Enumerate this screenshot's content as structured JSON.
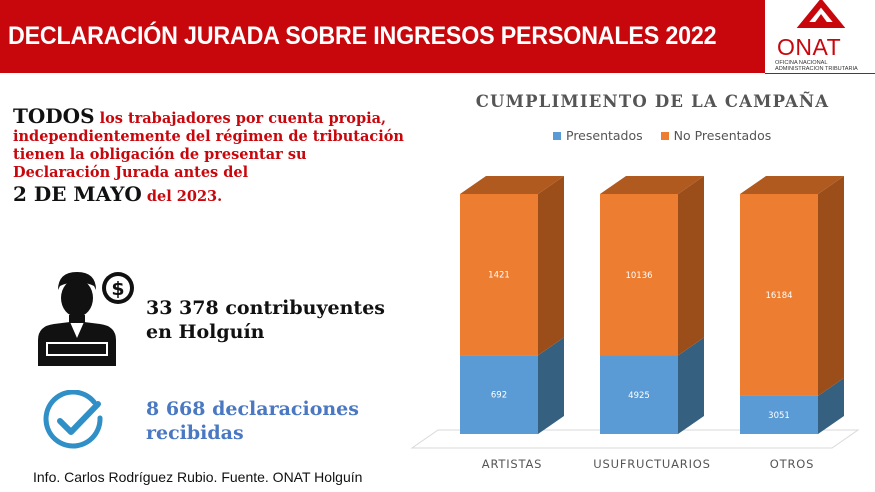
{
  "header": {
    "title": "DECLARACIÓN JURADA SOBRE INGRESOS PERSONALES 2022",
    "logo_text": "ONAT",
    "logo_subtitle_1": "OFICINA NACIONAL",
    "logo_subtitle_2": "ADMINISTRACION TRIBUTARIA"
  },
  "notice": {
    "lead": "TODOS",
    "line1_rest": " los trabajadores por cuenta propia,",
    "line2": " independientemente del régimen de tributación",
    "line3": "tienen la obligación de presentar su",
    "line4": "Declaración Jurada antes del",
    "deadline": "2 DE MAYO",
    "deadline_rest": " del 2023."
  },
  "stats": {
    "contributors_line1": "33 378 contribuyentes",
    "contributors_line2": "en Holguín",
    "declarations_line1": "8 668 declaraciones",
    "declarations_line2": "recibidas"
  },
  "credit": "Info. Carlos Rodríguez Rubio.   Fuente. ONAT Holguín",
  "colors": {
    "brand_red": "#c8070d",
    "presented": "#5b9bd5",
    "not_presented": "#ed7d31"
  },
  "chart_data": {
    "type": "bar",
    "stacked": true,
    "title": "CUMPLIMIENTO DE LA CAMPAÑA",
    "categories": [
      "ARTISTAS",
      "USUFRUCTUARIOS",
      "OTROS"
    ],
    "series": [
      {
        "name": "Presentados",
        "values": [
          692,
          4925,
          3051
        ],
        "color": "#5b9bd5"
      },
      {
        "name": "No Presentados",
        "values": [
          1421,
          10136,
          16184
        ],
        "color": "#ed7d31"
      }
    ],
    "legend_position": "top",
    "normalized_percent": true,
    "grid": false
  }
}
